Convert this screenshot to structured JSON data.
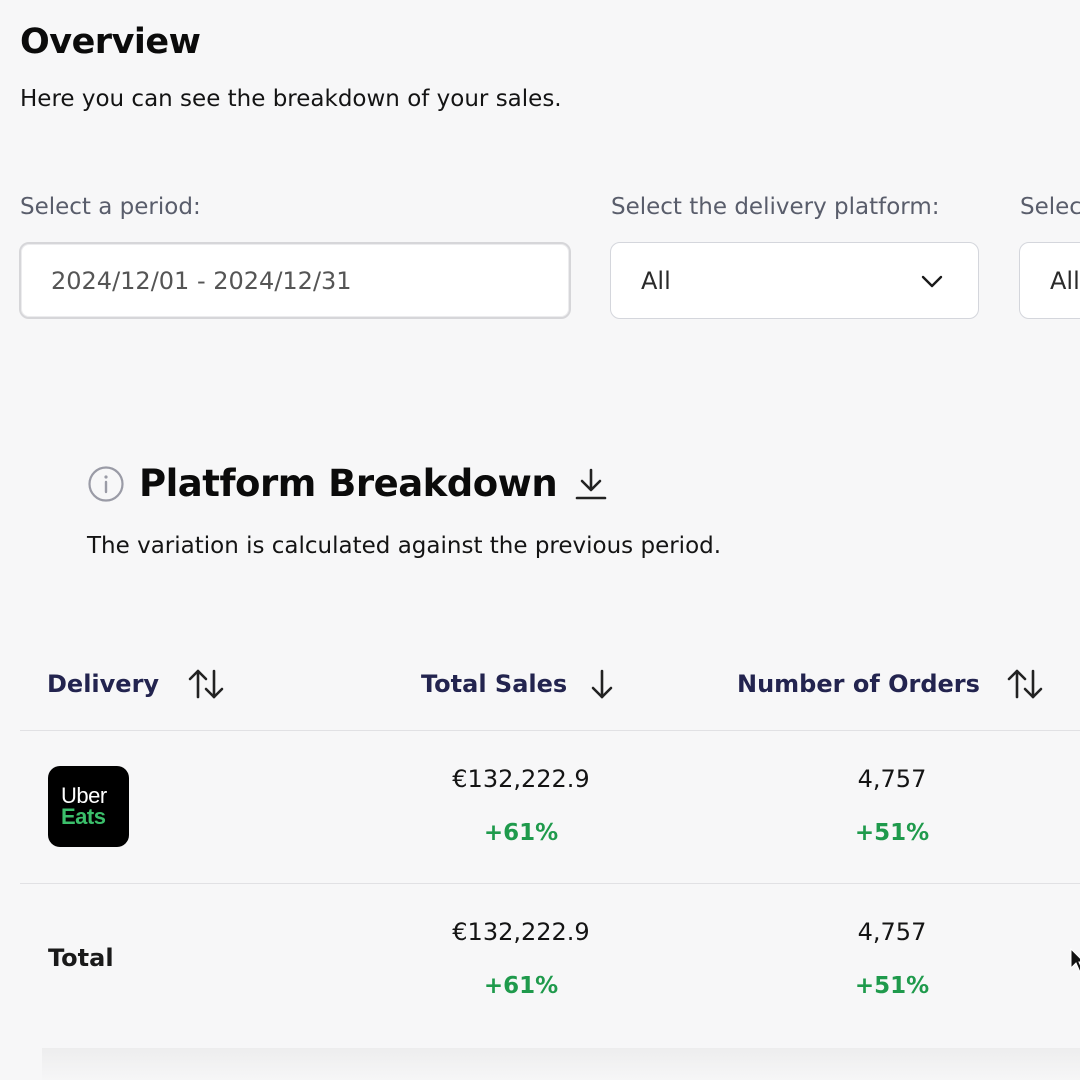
{
  "header": {
    "title": "Overview",
    "subtitle": "Here you can see the breakdown of your sales."
  },
  "filters": {
    "period": {
      "label": "Select a period:",
      "value": "2024/12/01 - 2024/12/31"
    },
    "platform": {
      "label": "Select the delivery platform:",
      "value": "All"
    },
    "third": {
      "label": "Selec",
      "value": "All"
    }
  },
  "section": {
    "title": "Platform Breakdown",
    "note": "The variation is calculated against the previous period.",
    "info_icon": "info-icon",
    "download_icon": "download-icon"
  },
  "table": {
    "columns": {
      "delivery": "Delivery",
      "total_sales": "Total Sales",
      "orders": "Number of Orders"
    },
    "rows": [
      {
        "platform_logo": {
          "line1": "Uber",
          "line2": "Eats"
        },
        "total_sales": "€132,222.9",
        "total_sales_variation": "+61%",
        "orders": "4,757",
        "orders_variation": "+51%"
      }
    ],
    "total": {
      "label": "Total",
      "total_sales": "€132,222.9",
      "total_sales_variation": "+61%",
      "orders": "4,757",
      "orders_variation": "+51%"
    }
  },
  "colors": {
    "positive_variation": "#1f9a4c",
    "column_header": "#23244f",
    "uber_eats_green": "#3bbf6b"
  }
}
